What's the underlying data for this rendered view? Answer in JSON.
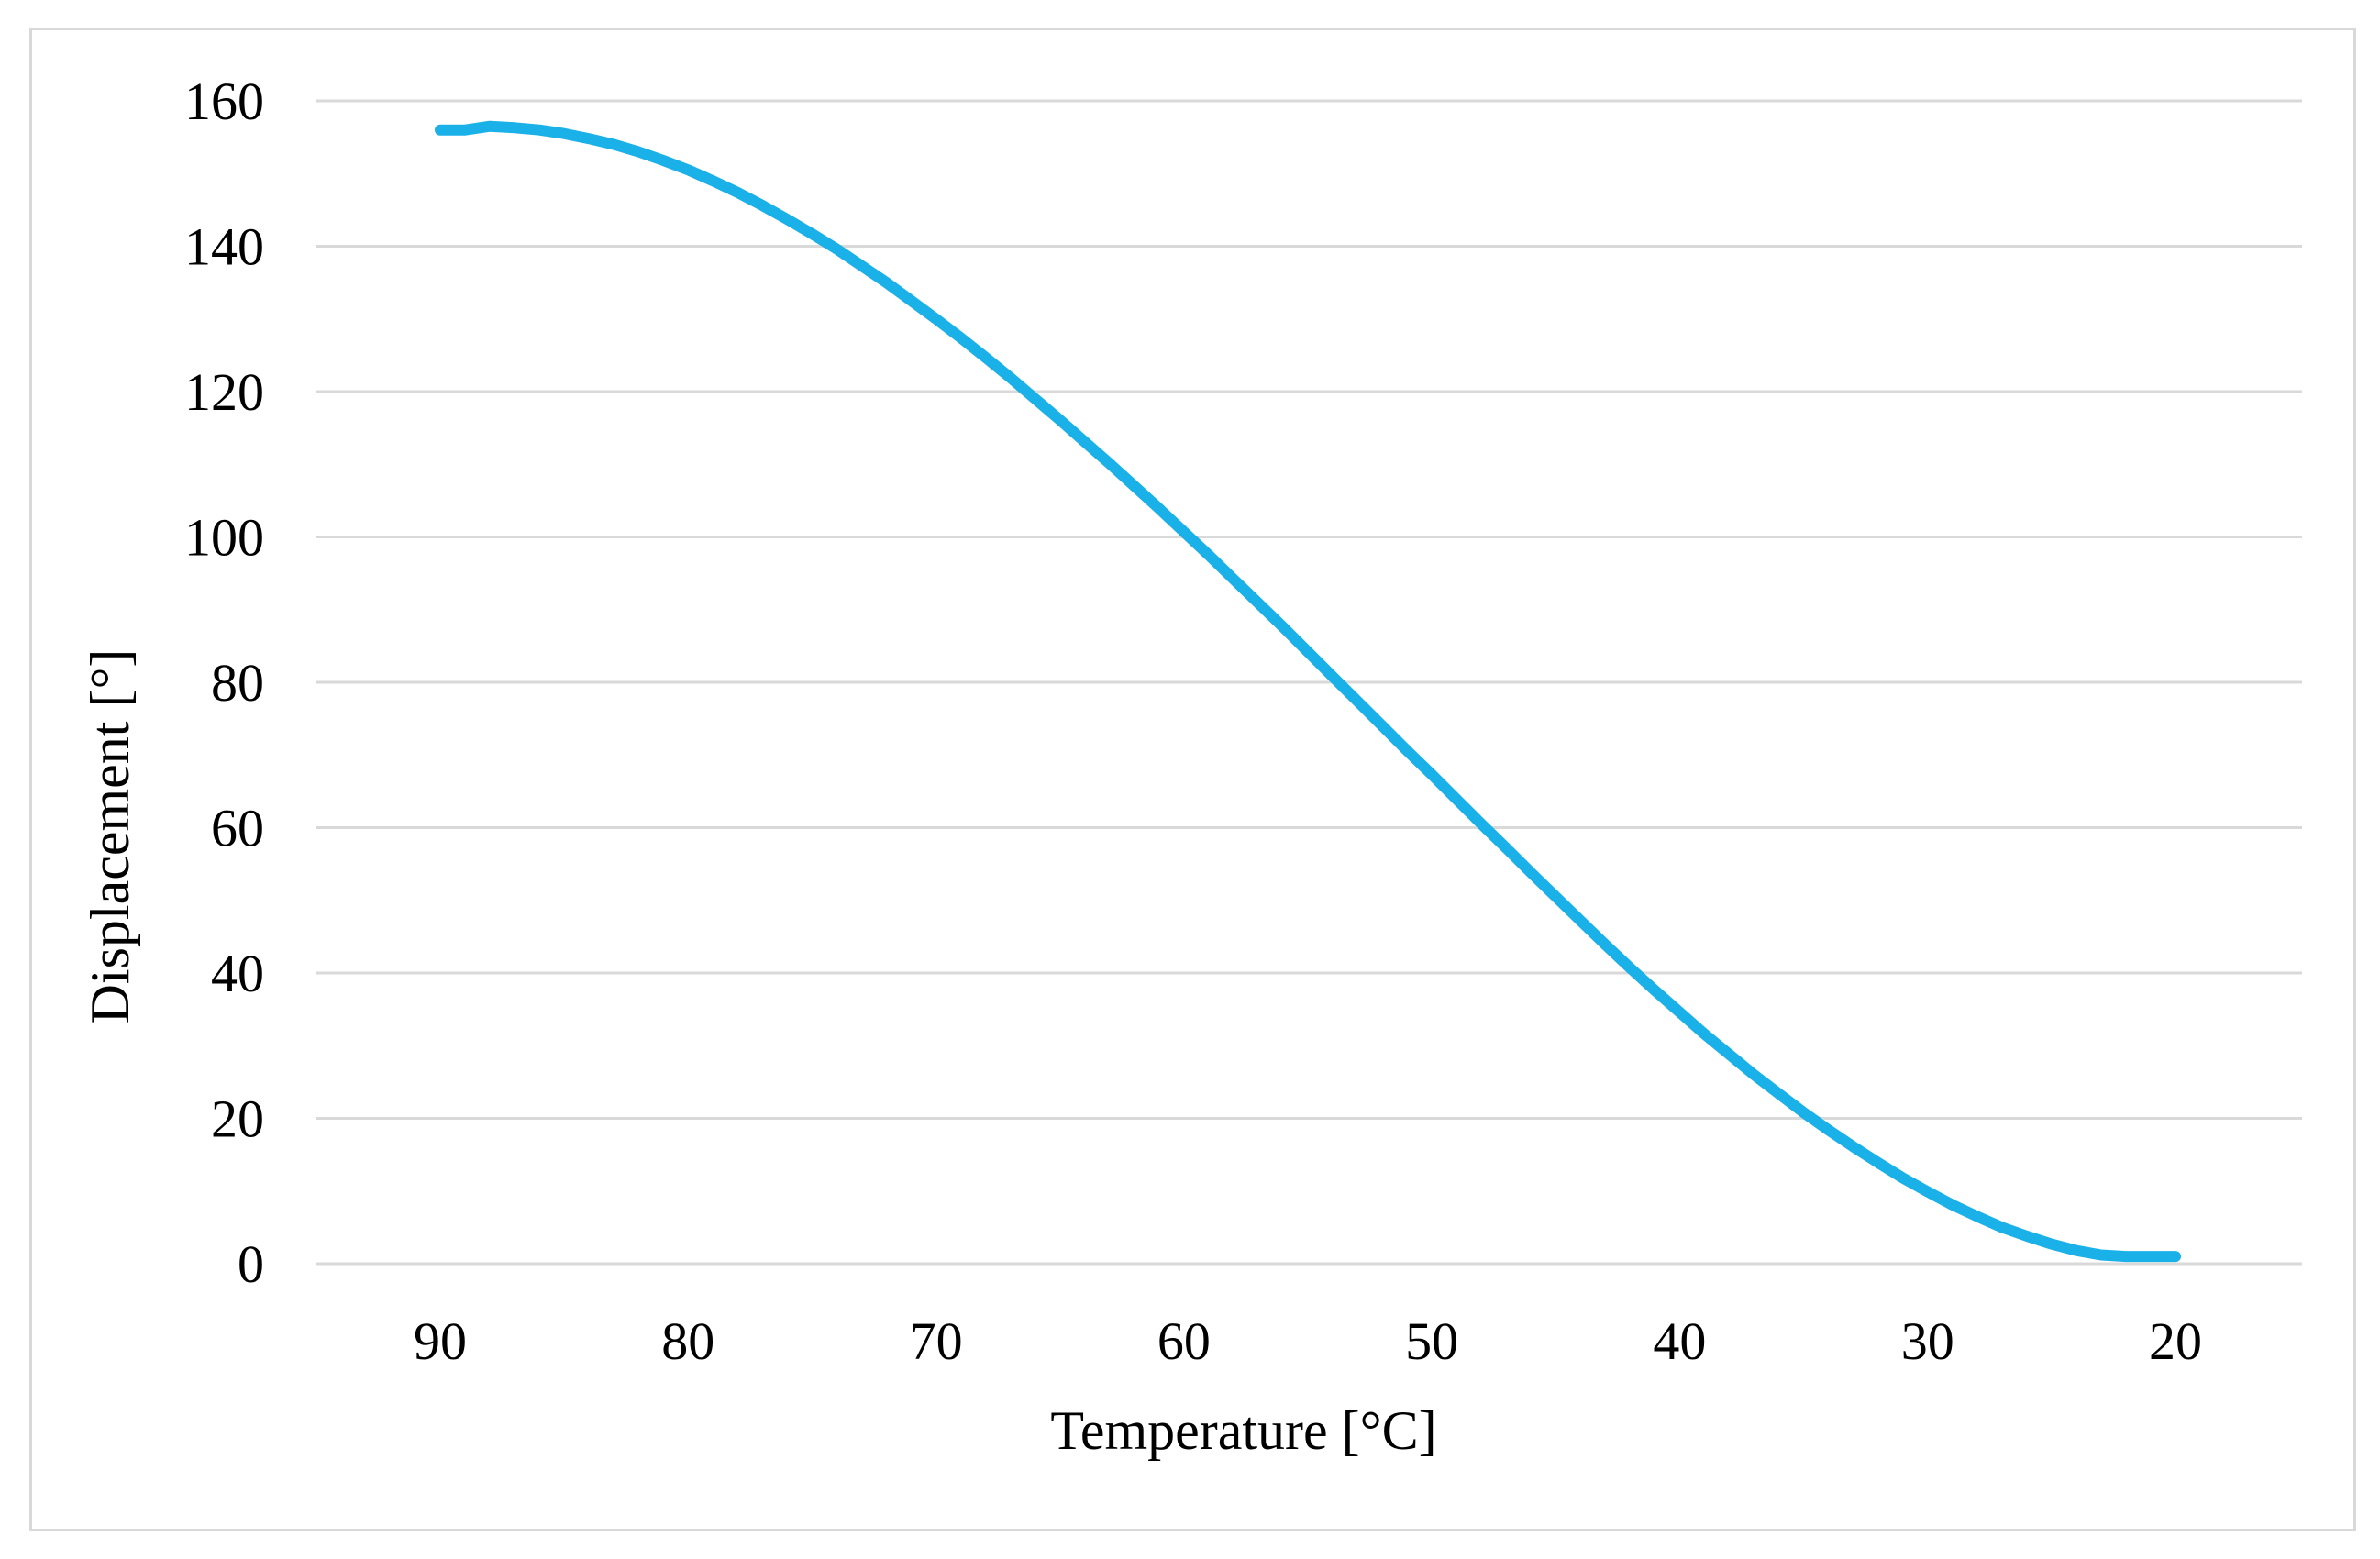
{
  "chart_data": {
    "type": "line",
    "title": "",
    "xlabel": "Temperature [°C]",
    "ylabel": "Displacement  [°]",
    "x_reversed": true,
    "xlim": [
      20,
      90
    ],
    "ylim": [
      0,
      160
    ],
    "x_ticks": [
      "90",
      "80",
      "70",
      "60",
      "50",
      "40",
      "30",
      "20"
    ],
    "y_ticks": [
      "0",
      "20",
      "40",
      "60",
      "80",
      "100",
      "120",
      "140",
      "160"
    ],
    "grid": "horizontal",
    "legend": "none",
    "series": [
      {
        "name": "Displacement",
        "color": "#1ab0e8",
        "x": [
          90,
          89,
          88,
          87,
          86,
          85,
          84,
          83,
          82,
          81,
          80,
          79,
          78,
          77,
          76,
          75,
          74,
          73,
          72,
          71,
          70,
          69,
          68,
          67,
          66,
          65,
          64,
          63,
          62,
          61,
          60,
          59,
          58,
          57,
          56,
          55,
          54,
          53,
          52,
          51,
          50,
          49,
          48,
          47,
          46,
          45,
          44,
          43,
          42,
          41,
          40,
          39,
          38,
          37,
          36,
          35,
          34,
          33,
          32,
          31,
          30,
          29,
          28,
          27,
          26,
          25,
          24,
          23,
          22,
          21,
          20
        ],
        "y": [
          156,
          156,
          156.5,
          156.3,
          156,
          155.5,
          154.8,
          154,
          153,
          151.8,
          150.5,
          149,
          147.4,
          145.6,
          143.7,
          141.7,
          139.6,
          137.3,
          135,
          132.5,
          130,
          127.4,
          124.7,
          121.9,
          119,
          116.1,
          113.1,
          110.1,
          107,
          103.9,
          100.7,
          97.5,
          94.2,
          90.9,
          87.6,
          84.2,
          80.8,
          77.4,
          74,
          70.6,
          67.3,
          63.9,
          60.5,
          57.2,
          53.8,
          50.5,
          47.2,
          43.9,
          40.7,
          37.6,
          34.6,
          31.6,
          28.8,
          26,
          23.4,
          20.8,
          18.4,
          16.1,
          13.9,
          11.8,
          9.9,
          8.1,
          6.5,
          5,
          3.8,
          2.7,
          1.8,
          1.2,
          1,
          1,
          1
        ]
      }
    ]
  }
}
